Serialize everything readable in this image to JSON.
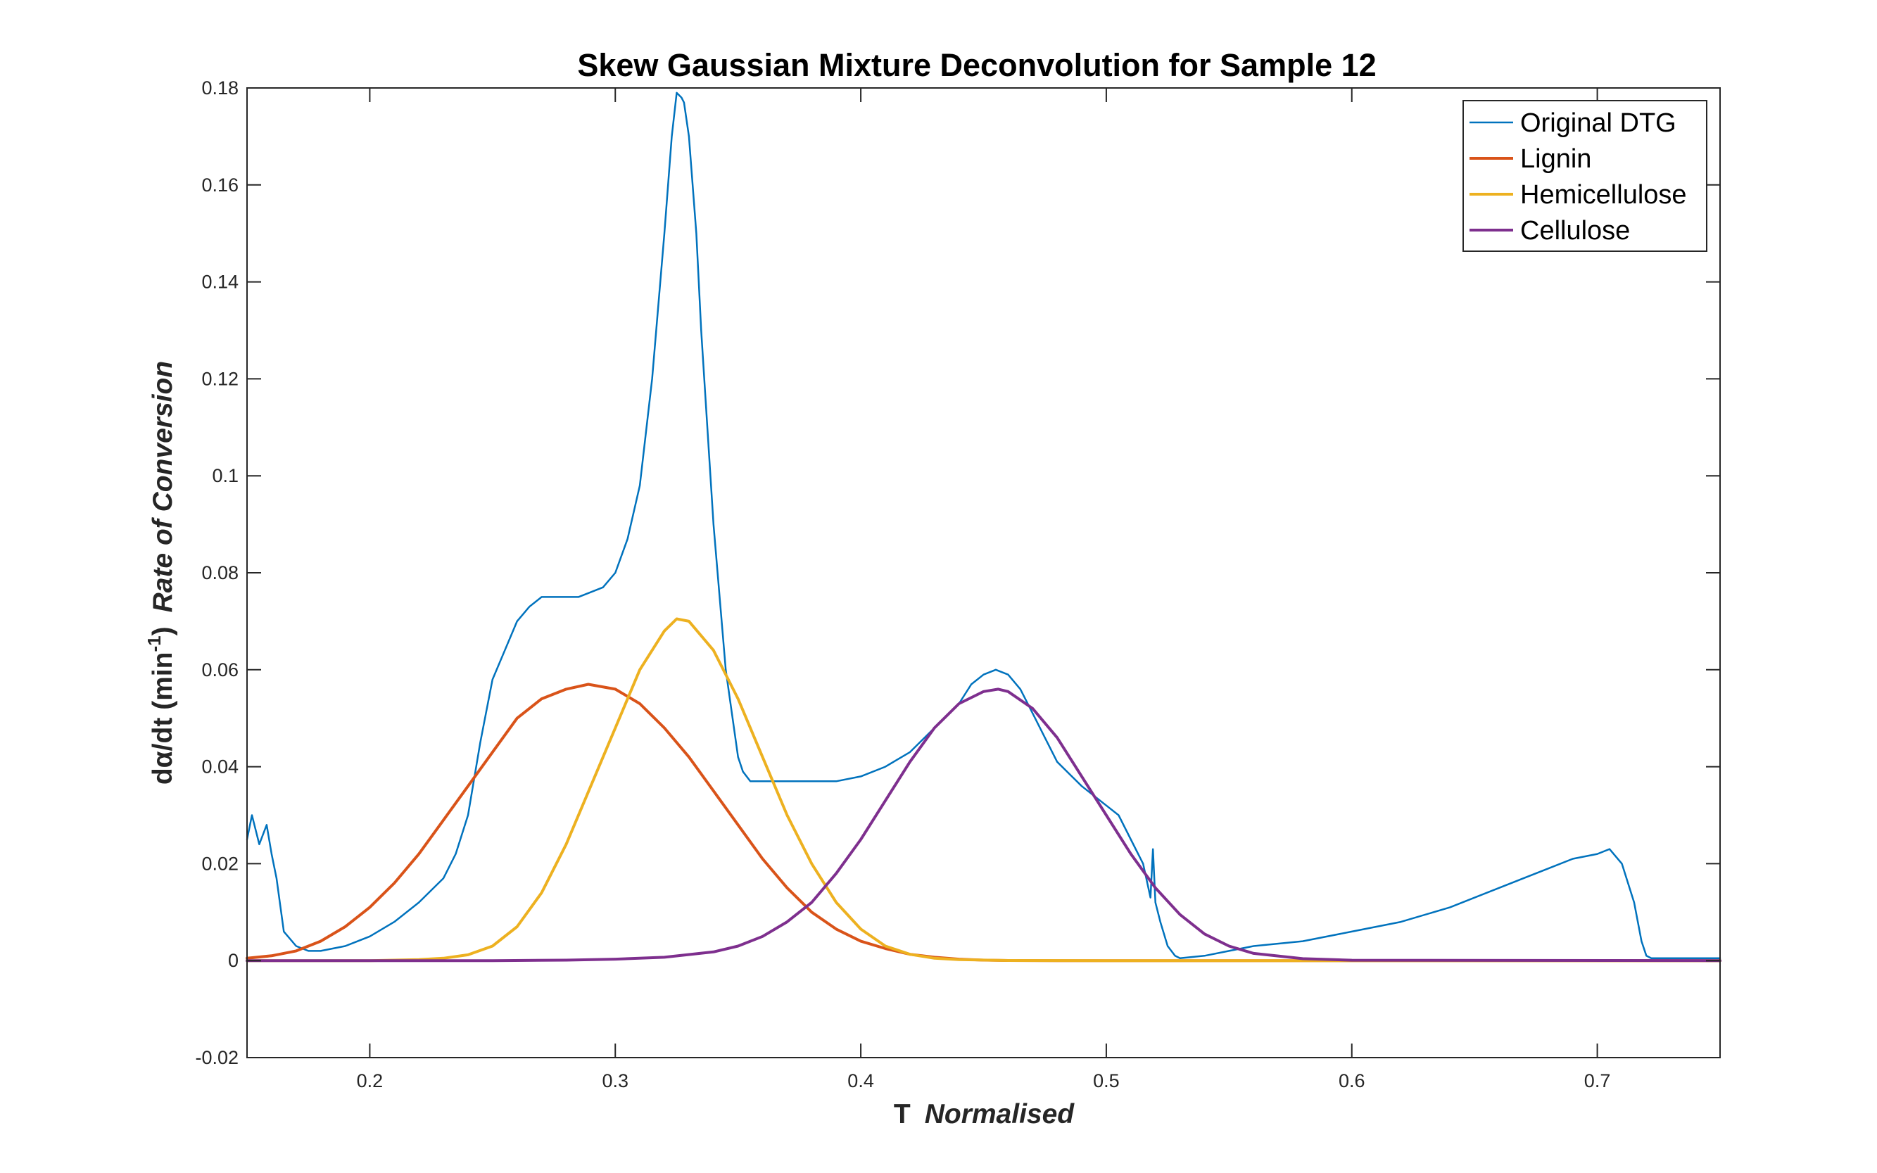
{
  "chart_data": {
    "type": "line",
    "title": "Skew Gaussian Mixture Deconvolution for Sample 12",
    "xlabel": {
      "main": "T",
      "italic": "Normalised"
    },
    "ylabel": {
      "main": "dα/dt (min",
      "superscript": "-1",
      "close": ")",
      "italic": "Rate of Conversion"
    },
    "xlim": [
      0.15,
      0.75
    ],
    "ylim": [
      -0.02,
      0.18
    ],
    "xticks": [
      0.2,
      0.3,
      0.4,
      0.5,
      0.6,
      0.7
    ],
    "xtick_labels": [
      "0.2",
      "0.3",
      "0.4",
      "0.5",
      "0.6",
      "0.7"
    ],
    "yticks": [
      -0.02,
      0,
      0.02,
      0.04,
      0.06,
      0.08,
      0.1,
      0.12,
      0.14,
      0.16,
      0.18
    ],
    "ytick_labels": [
      "-0.02",
      "0",
      "0.02",
      "0.04",
      "0.06",
      "0.08",
      "0.1",
      "0.12",
      "0.14",
      "0.16",
      "0.18"
    ],
    "grid": false,
    "legend_position": "top-right",
    "series": [
      {
        "name": "Original DTG",
        "color": "#0072BD",
        "x": [
          0.15,
          0.152,
          0.155,
          0.158,
          0.16,
          0.162,
          0.165,
          0.17,
          0.175,
          0.18,
          0.19,
          0.2,
          0.21,
          0.22,
          0.23,
          0.235,
          0.24,
          0.245,
          0.25,
          0.255,
          0.26,
          0.265,
          0.27,
          0.275,
          0.28,
          0.285,
          0.29,
          0.295,
          0.3,
          0.305,
          0.31,
          0.315,
          0.32,
          0.323,
          0.325,
          0.327,
          0.328,
          0.33,
          0.333,
          0.335,
          0.34,
          0.345,
          0.35,
          0.352,
          0.355,
          0.36,
          0.37,
          0.38,
          0.39,
          0.4,
          0.41,
          0.42,
          0.43,
          0.44,
          0.445,
          0.45,
          0.455,
          0.46,
          0.465,
          0.47,
          0.475,
          0.48,
          0.49,
          0.5,
          0.505,
          0.51,
          0.515,
          0.518,
          0.519,
          0.52,
          0.522,
          0.525,
          0.528,
          0.53,
          0.54,
          0.55,
          0.56,
          0.58,
          0.6,
          0.62,
          0.64,
          0.66,
          0.68,
          0.69,
          0.7,
          0.705,
          0.71,
          0.715,
          0.718,
          0.72,
          0.722,
          0.725,
          0.73,
          0.74,
          0.75
        ],
        "values": [
          0.025,
          0.03,
          0.024,
          0.028,
          0.022,
          0.017,
          0.006,
          0.003,
          0.002,
          0.002,
          0.003,
          0.005,
          0.008,
          0.012,
          0.017,
          0.022,
          0.03,
          0.045,
          0.058,
          0.064,
          0.07,
          0.073,
          0.075,
          0.075,
          0.075,
          0.075,
          0.076,
          0.077,
          0.08,
          0.087,
          0.098,
          0.12,
          0.15,
          0.17,
          0.179,
          0.178,
          0.177,
          0.17,
          0.15,
          0.13,
          0.09,
          0.06,
          0.042,
          0.039,
          0.037,
          0.037,
          0.037,
          0.037,
          0.037,
          0.038,
          0.04,
          0.043,
          0.048,
          0.053,
          0.057,
          0.059,
          0.06,
          0.059,
          0.056,
          0.051,
          0.046,
          0.041,
          0.036,
          0.032,
          0.03,
          0.025,
          0.02,
          0.013,
          0.023,
          0.012,
          0.008,
          0.003,
          0.001,
          0.0005,
          0.001,
          0.002,
          0.003,
          0.004,
          0.006,
          0.008,
          0.011,
          0.015,
          0.019,
          0.021,
          0.022,
          0.023,
          0.02,
          0.012,
          0.004,
          0.001,
          0.0005,
          0.0005,
          0.0005,
          0.0005,
          0.0005
        ]
      },
      {
        "name": "Lignin",
        "color": "#D95319",
        "x": [
          0.15,
          0.16,
          0.17,
          0.18,
          0.19,
          0.2,
          0.21,
          0.22,
          0.23,
          0.24,
          0.25,
          0.26,
          0.27,
          0.28,
          0.289,
          0.3,
          0.31,
          0.32,
          0.33,
          0.34,
          0.35,
          0.36,
          0.37,
          0.38,
          0.39,
          0.4,
          0.41,
          0.42,
          0.43,
          0.44,
          0.45,
          0.46,
          0.48,
          0.5,
          0.75
        ],
        "values": [
          0.0005,
          0.001,
          0.002,
          0.004,
          0.007,
          0.011,
          0.016,
          0.022,
          0.029,
          0.036,
          0.043,
          0.05,
          0.054,
          0.056,
          0.057,
          0.056,
          0.053,
          0.048,
          0.042,
          0.035,
          0.028,
          0.021,
          0.015,
          0.01,
          0.0065,
          0.004,
          0.0025,
          0.0013,
          0.0007,
          0.0003,
          0.0001,
          3e-05,
          0.0,
          0.0,
          0.0
        ]
      },
      {
        "name": "Hemicellulose",
        "color": "#EDB120",
        "x": [
          0.15,
          0.2,
          0.22,
          0.23,
          0.24,
          0.25,
          0.26,
          0.27,
          0.28,
          0.29,
          0.3,
          0.31,
          0.32,
          0.325,
          0.33,
          0.34,
          0.35,
          0.36,
          0.37,
          0.38,
          0.39,
          0.4,
          0.41,
          0.42,
          0.43,
          0.44,
          0.46,
          0.5,
          0.75
        ],
        "values": [
          0.0,
          0.0,
          0.0002,
          0.0005,
          0.0012,
          0.003,
          0.007,
          0.014,
          0.024,
          0.036,
          0.048,
          0.06,
          0.068,
          0.0705,
          0.07,
          0.064,
          0.054,
          0.042,
          0.03,
          0.02,
          0.012,
          0.0065,
          0.003,
          0.0013,
          0.0005,
          0.0002,
          3e-05,
          0.0,
          0.0
        ]
      },
      {
        "name": "Cellulose",
        "color": "#7E2F8E",
        "x": [
          0.15,
          0.25,
          0.28,
          0.3,
          0.32,
          0.34,
          0.35,
          0.36,
          0.37,
          0.38,
          0.39,
          0.4,
          0.41,
          0.42,
          0.43,
          0.44,
          0.45,
          0.456,
          0.46,
          0.47,
          0.48,
          0.49,
          0.5,
          0.51,
          0.52,
          0.53,
          0.54,
          0.55,
          0.56,
          0.58,
          0.6,
          0.75
        ],
        "values": [
          0.0,
          0.0,
          0.0001,
          0.0003,
          0.0007,
          0.0018,
          0.003,
          0.005,
          0.008,
          0.012,
          0.018,
          0.025,
          0.033,
          0.041,
          0.048,
          0.053,
          0.0555,
          0.056,
          0.0555,
          0.052,
          0.046,
          0.038,
          0.03,
          0.022,
          0.015,
          0.0095,
          0.0055,
          0.003,
          0.0015,
          0.0004,
          8e-05,
          0.0
        ]
      }
    ]
  }
}
